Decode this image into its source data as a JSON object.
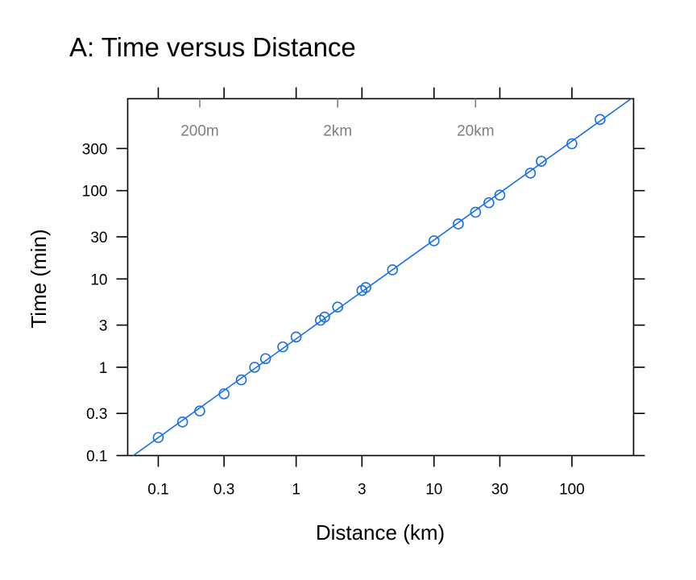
{
  "chart_data": {
    "type": "scatter",
    "title": "A: Time versus Distance",
    "xlabel": "Distance (km)",
    "ylabel": "Time (min)",
    "x_scale": "log",
    "y_scale": "log",
    "xlim": [
      0.06,
      280
    ],
    "ylim": [
      0.1,
      1100
    ],
    "x_ticks": [
      0.1,
      0.3,
      1,
      3,
      10,
      30,
      100
    ],
    "x_tick_labels": [
      "0.1",
      "0.3",
      "1",
      "3",
      "10",
      "30",
      "100"
    ],
    "y_ticks": [
      0.1,
      0.3,
      1,
      3,
      10,
      30,
      100,
      300
    ],
    "y_tick_labels": [
      "0.1",
      "0.3",
      "1",
      "3",
      "10",
      "30",
      "100",
      "300"
    ],
    "top_annotations": [
      {
        "x": 0.2,
        "label": "200m"
      },
      {
        "x": 2,
        "label": "2km"
      },
      {
        "x": 20,
        "label": "20km"
      }
    ],
    "grid": false,
    "series": [
      {
        "points": [
          {
            "x": 0.1,
            "y": 0.16
          },
          {
            "x": 0.15,
            "y": 0.24
          },
          {
            "x": 0.2,
            "y": 0.32
          },
          {
            "x": 0.3,
            "y": 0.5
          },
          {
            "x": 0.4,
            "y": 0.72
          },
          {
            "x": 0.5,
            "y": 1.0
          },
          {
            "x": 0.6,
            "y": 1.25
          },
          {
            "x": 0.8,
            "y": 1.7
          },
          {
            "x": 1.0,
            "y": 2.2
          },
          {
            "x": 1.5,
            "y": 3.4
          },
          {
            "x": 1.609,
            "y": 3.7
          },
          {
            "x": 2.0,
            "y": 4.8
          },
          {
            "x": 3.0,
            "y": 7.4
          },
          {
            "x": 3.2,
            "y": 8.0
          },
          {
            "x": 5.0,
            "y": 12.7
          },
          {
            "x": 10.0,
            "y": 27
          },
          {
            "x": 15.0,
            "y": 42
          },
          {
            "x": 20.0,
            "y": 57
          },
          {
            "x": 25.0,
            "y": 73
          },
          {
            "x": 30.0,
            "y": 89
          },
          {
            "x": 50.0,
            "y": 158
          },
          {
            "x": 60.0,
            "y": 215
          },
          {
            "x": 100.0,
            "y": 340
          },
          {
            "x": 160.0,
            "y": 640
          }
        ]
      }
    ],
    "fit_line": {
      "x": [
        0.06,
        280
      ],
      "y": [
        0.09,
        1150
      ]
    },
    "colors": {
      "series": "#1a6fe8",
      "frame": "#000000",
      "annotation": "#808080"
    }
  }
}
